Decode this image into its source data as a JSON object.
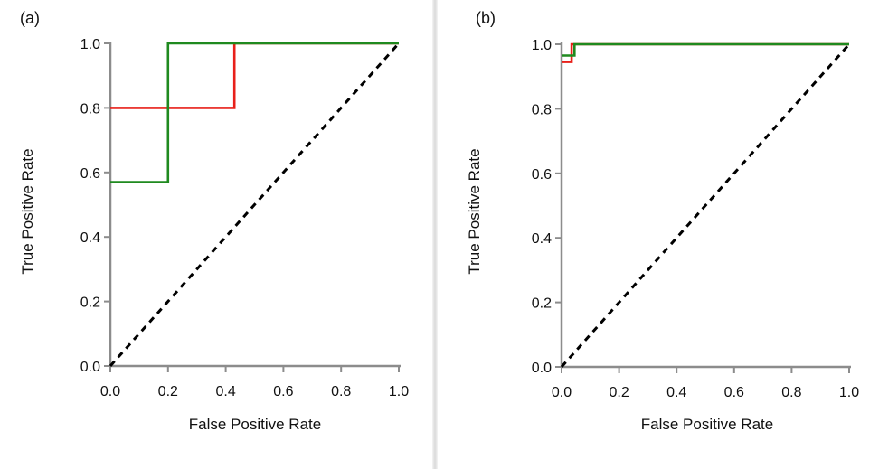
{
  "chart_data": [
    {
      "type": "line",
      "panel_label": "(a)",
      "xlabel": "False Positive Rate",
      "ylabel": "True Positive Rate",
      "xlim": [
        0,
        1
      ],
      "ylim": [
        0,
        1
      ],
      "xticks": [
        "0.0",
        "0.2",
        "0.4",
        "0.6",
        "0.8",
        "1.0"
      ],
      "yticks": [
        "0.0",
        "0.2",
        "0.4",
        "0.6",
        "0.8",
        "1.0"
      ],
      "series": [
        {
          "name": "red-roc",
          "color": "#e8201a",
          "points": [
            [
              0,
              0.8
            ],
            [
              0.43,
              0.8
            ],
            [
              0.43,
              1.0
            ],
            [
              1.0,
              1.0
            ]
          ]
        },
        {
          "name": "green-roc",
          "color": "#1f8a1f",
          "points": [
            [
              0,
              0.57
            ],
            [
              0.2,
              0.57
            ],
            [
              0.2,
              1.0
            ],
            [
              1.0,
              1.0
            ]
          ]
        },
        {
          "name": "chance-diagonal",
          "color": "#000000",
          "dashed": true,
          "points": [
            [
              0,
              0
            ],
            [
              1,
              1
            ]
          ]
        }
      ]
    },
    {
      "type": "line",
      "panel_label": "(b)",
      "xlabel": "False Positive Rate",
      "ylabel": "True Positive Rate",
      "xlim": [
        0,
        1
      ],
      "ylim": [
        0,
        1
      ],
      "xticks": [
        "0.0",
        "0.2",
        "0.4",
        "0.6",
        "0.8",
        "1.0"
      ],
      "yticks": [
        "0.0",
        "0.2",
        "0.4",
        "0.6",
        "0.8",
        "1.0"
      ],
      "series": [
        {
          "name": "red-roc",
          "color": "#e8201a",
          "points": [
            [
              0,
              0.945
            ],
            [
              0.035,
              0.945
            ],
            [
              0.035,
              1.0
            ],
            [
              1.0,
              1.0
            ]
          ]
        },
        {
          "name": "green-roc",
          "color": "#1f8a1f",
          "points": [
            [
              0,
              0.965
            ],
            [
              0.045,
              0.965
            ],
            [
              0.045,
              1.0
            ],
            [
              1.0,
              1.0
            ]
          ]
        },
        {
          "name": "chance-diagonal",
          "color": "#000000",
          "dashed": true,
          "points": [
            [
              0,
              0
            ],
            [
              1,
              1
            ]
          ]
        }
      ]
    }
  ]
}
